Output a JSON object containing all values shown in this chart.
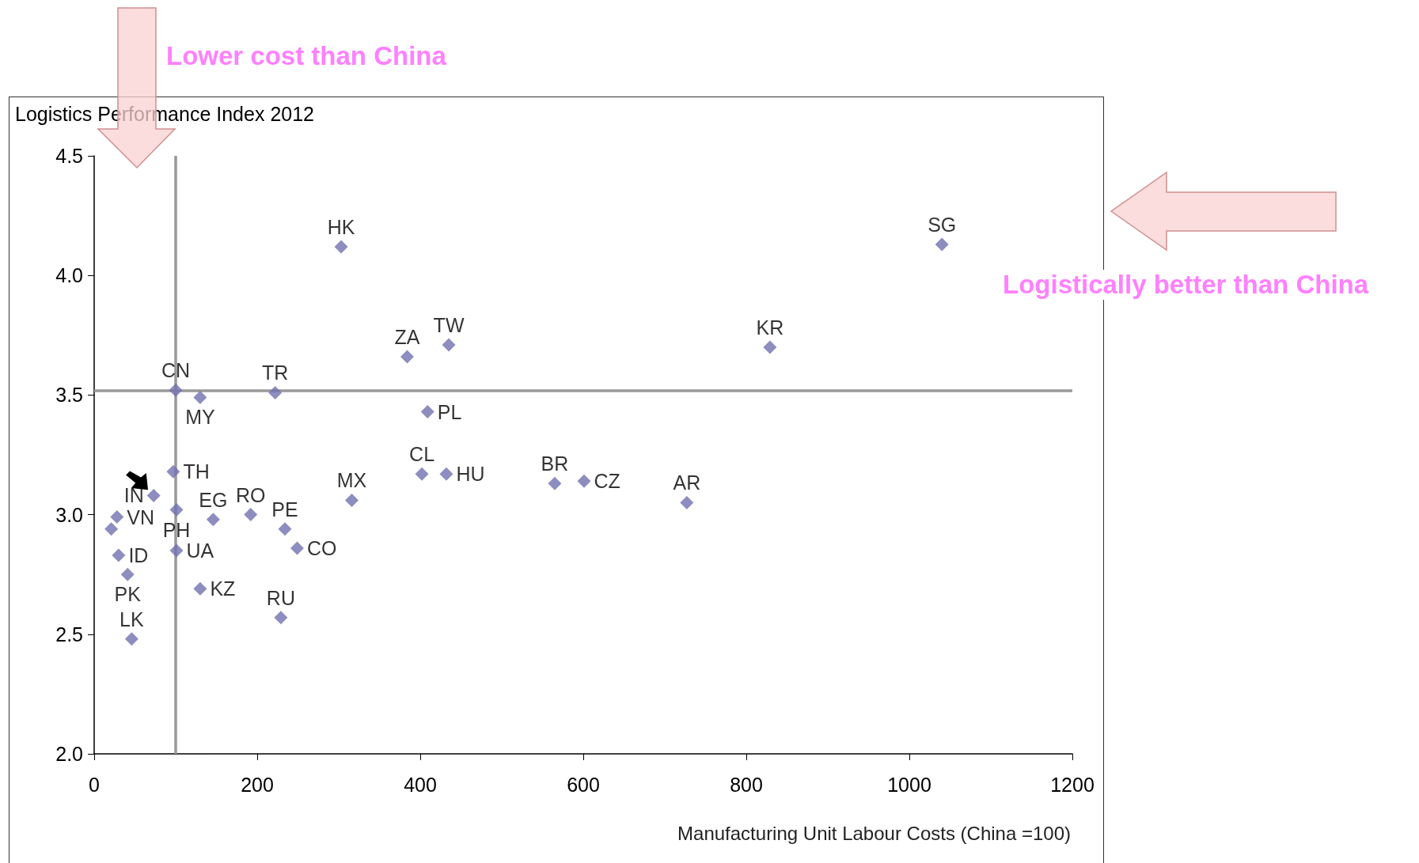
{
  "chart_data": {
    "type": "scatter",
    "ylabel": "Logistics Performance Index 2012",
    "xlabel": "Manufacturing Unit Labour Costs (China =100)",
    "series": [
      {
        "color": "#7070b0",
        "x": [
          303,
          1040,
          384,
          435,
          829,
          100,
          130,
          222,
          409,
          402,
          432,
          565,
          601,
          727,
          316,
          97,
          73,
          101,
          28,
          21,
          30,
          41,
          101,
          130,
          46,
          146,
          192,
          234,
          249,
          229
        ],
        "values": [
          4.12,
          4.13,
          3.66,
          3.71,
          3.7,
          3.52,
          3.49,
          3.51,
          3.43,
          3.17,
          3.17,
          3.13,
          3.14,
          3.05,
          3.06,
          3.18,
          3.08,
          3.02,
          2.99,
          2.94,
          2.83,
          2.75,
          2.85,
          2.69,
          2.48,
          2.98,
          3.0,
          2.94,
          2.86,
          2.57
        ]
      }
    ],
    "marker": "diamond",
    "xlim": [
      0,
      1200
    ],
    "xticks": [
      0,
      200,
      400,
      600,
      800,
      1000,
      1200
    ],
    "ylim": [
      2.0,
      4.5
    ],
    "yticks": [
      {
        "value": 2,
        "label": "2.0"
      },
      2.5,
      {
        "value": 3,
        "label": "3.0"
      },
      3.5,
      {
        "value": 4,
        "label": "4.0"
      },
      4.5
    ],
    "grid": false,
    "ref_lines": [
      {
        "axis": "x",
        "value": 100,
        "color": "#999999"
      },
      {
        "axis": "y",
        "value": 3.52,
        "color": "#999999"
      }
    ],
    "annotations": [
      {
        "text": "HK",
        "x": 303,
        "y": 4.12
      },
      {
        "text": "SG",
        "x": 1040,
        "y": 4.13
      },
      {
        "text": "ZA",
        "x": 384,
        "y": 3.66
      },
      {
        "text": "TW",
        "x": 435,
        "y": 3.71
      },
      {
        "text": "KR",
        "x": 829,
        "y": 3.7
      },
      {
        "text": "CN",
        "x": 100,
        "y": 3.52
      },
      {
        "text": "MY",
        "x": 130,
        "y": 3.49
      },
      {
        "text": "TR",
        "x": 222,
        "y": 3.51
      },
      {
        "text": "PL",
        "x": 409,
        "y": 3.43
      },
      {
        "text": "CL",
        "x": 402,
        "y": 3.17
      },
      {
        "text": "HU",
        "x": 432,
        "y": 3.17
      },
      {
        "text": "BR",
        "x": 565,
        "y": 3.13
      },
      {
        "text": "CZ",
        "x": 601,
        "y": 3.14
      },
      {
        "text": "AR",
        "x": 727,
        "y": 3.05
      },
      {
        "text": "MX",
        "x": 316,
        "y": 3.06
      },
      {
        "text": "TH",
        "x": 97,
        "y": 3.18
      },
      {
        "text": "IN",
        "x": 73,
        "y": 3.08
      },
      {
        "text": "PH",
        "x": 101,
        "y": 3.02
      },
      {
        "text": "VN",
        "x": 28,
        "y": 2.99
      },
      {
        "text": "ID",
        "x": 30,
        "y": 2.83
      },
      {
        "text": "PK",
        "x": 41,
        "y": 2.75
      },
      {
        "text": "UA",
        "x": 101,
        "y": 2.85
      },
      {
        "text": "KZ",
        "x": 130,
        "y": 2.69
      },
      {
        "text": "LK",
        "x": 46,
        "y": 2.48
      },
      {
        "text": "EG",
        "x": 146,
        "y": 2.98
      },
      {
        "text": "RO",
        "x": 192,
        "y": 3.0
      },
      {
        "text": "PE",
        "x": 234,
        "y": 2.94
      },
      {
        "text": "CO",
        "x": 249,
        "y": 2.86
      },
      {
        "text": "RU",
        "x": 229,
        "y": 2.57
      },
      "Lower cost than China",
      "Logistically better than China"
    ]
  }
}
